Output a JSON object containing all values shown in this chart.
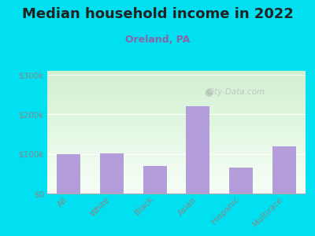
{
  "title": "Median household income in 2022",
  "subtitle": "Oreland, PA",
  "categories": [
    "All",
    "White",
    "Black",
    "Asian",
    "Hispanic",
    "Multirace"
  ],
  "values": [
    100000,
    101000,
    70000,
    220000,
    65000,
    120000
  ],
  "bar_color": "#b39ddb",
  "background_outer": "#00e0f0",
  "background_inner_topleft": "#d4edda",
  "background_inner_topright": "#d0ecd8",
  "background_inner_bottom": "#f5fff5",
  "yticks": [
    0,
    100000,
    200000,
    300000
  ],
  "ytick_labels": [
    "$0",
    "$100k",
    "$200k",
    "$300k"
  ],
  "ylim": [
    0,
    310000
  ],
  "title_fontsize": 13,
  "subtitle_fontsize": 9,
  "subtitle_color": "#8866aa",
  "tick_color": "#888888",
  "watermark": "City-Data.com",
  "bar_width": 0.55
}
